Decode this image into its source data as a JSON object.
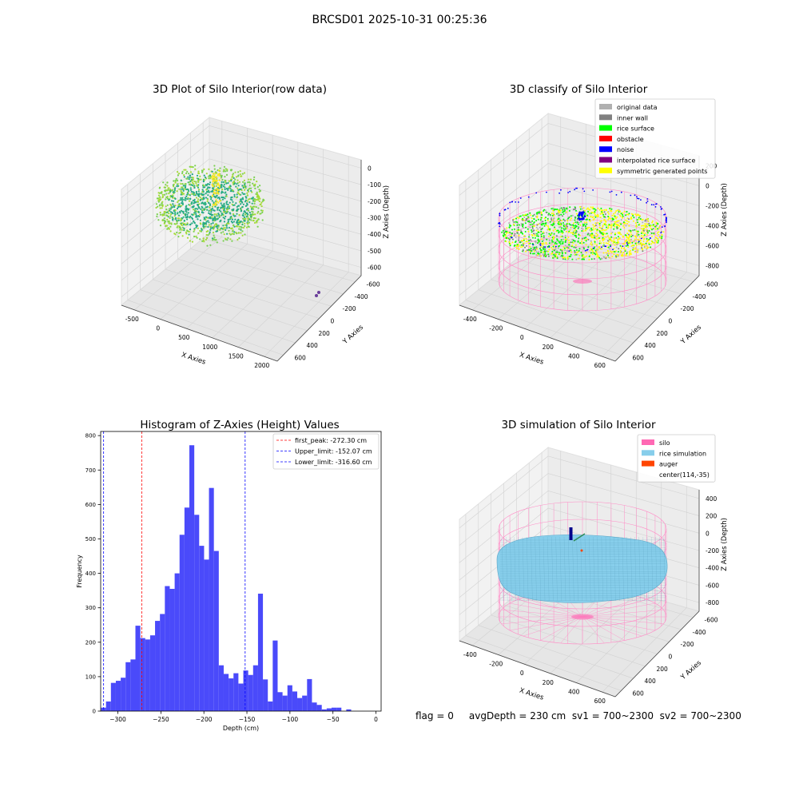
{
  "suptitle": "BRCSD01 2025-10-31 00:25:36",
  "status_line": "flag = 0     avgDepth = 230 cm  sv1 = 700~2300  sv2 = 700~2300",
  "chart_data": [
    {
      "id": "raw",
      "type": "scatter",
      "title": "3D Plot of Silo Interior(row data)",
      "xlabel": "X Axies",
      "ylabel": "Y Axies",
      "zlabel": "Z Axies (Depth)",
      "xticks": [
        "-500",
        "0",
        "500",
        "1000",
        "1500",
        "2000"
      ],
      "yticks": [
        "-600",
        "-400",
        "-200",
        "0",
        "200",
        "400",
        "600"
      ],
      "zticks": [
        "0",
        "-100",
        "-200",
        "-300",
        "-400",
        "-500",
        "-600"
      ],
      "xlim": [
        -600,
        2000
      ],
      "ylim": [
        -700,
        700
      ],
      "zlim": [
        -650,
        30
      ]
    },
    {
      "id": "classify",
      "type": "scatter",
      "title": "3D classify of Silo Interior",
      "xlabel": "X Axies",
      "ylabel": "Y Axies",
      "zlabel": "Z Axies (Depth)",
      "xticks": [
        "-400",
        "-200",
        "0",
        "200",
        "400",
        "600"
      ],
      "yticks": [
        "-600",
        "-400",
        "-200",
        "0",
        "200",
        "400",
        "600"
      ],
      "zticks": [
        "200",
        "0",
        "-200",
        "-400",
        "-600",
        "-800"
      ],
      "legend_position": "top-right",
      "legend": [
        {
          "label": "original data",
          "color": "#b0b0b0"
        },
        {
          "label": "inner wall",
          "color": "#808080"
        },
        {
          "label": "rice surface",
          "color": "#00ff00"
        },
        {
          "label": "obstacle",
          "color": "#ff0000"
        },
        {
          "label": "noise",
          "color": "#0000ff"
        },
        {
          "label": "interpolated rice surface",
          "color": "#800080"
        },
        {
          "label": "symmetric generated points",
          "color": "#ffff00"
        }
      ]
    },
    {
      "id": "histogram",
      "type": "bar",
      "title": "Histogram of Z-Axies (Height) Values",
      "xlabel": "Depth (cm)",
      "ylabel": "Frequency",
      "xlim": [
        -320,
        6
      ],
      "ylim": [
        0,
        812
      ],
      "xticks": [
        -300,
        -250,
        -200,
        -150,
        -100,
        -50,
        0
      ],
      "xtick_labels": [
        "−300",
        "−250",
        "−200",
        "−150",
        "−100",
        "−50",
        "0"
      ],
      "yticks": [
        0,
        100,
        200,
        300,
        400,
        500,
        600,
        700,
        800
      ],
      "bar_color": "#4a4afa",
      "bin_width": 5.7,
      "bin_starts": [
        -319.5,
        -313.8,
        -308.1,
        -302.4,
        -296.7,
        -291.0,
        -285.3,
        -279.6,
        -273.9,
        -268.2,
        -262.5,
        -256.8,
        -251.1,
        -245.4,
        -239.7,
        -234.0,
        -228.3,
        -222.6,
        -216.9,
        -211.2,
        -205.5,
        -199.8,
        -194.1,
        -188.4,
        -182.7,
        -177.0,
        -171.3,
        -165.6,
        -159.9,
        -154.2,
        -148.5,
        -142.8,
        -137.1,
        -131.4,
        -125.7,
        -120.0,
        -114.3,
        -108.6,
        -102.9,
        -97.2,
        -91.5,
        -85.8,
        -80.1,
        -74.4,
        -68.7,
        -63.0,
        -57.3,
        -51.6,
        -45.9,
        -40.2,
        -34.5,
        -28.8,
        -23.1,
        -17.4,
        -11.7,
        -6.0,
        -0.3
      ],
      "values": [
        10,
        28,
        82,
        88,
        97,
        142,
        150,
        248,
        212,
        208,
        220,
        262,
        282,
        363,
        355,
        400,
        512,
        591,
        772,
        570,
        480,
        440,
        648,
        465,
        133,
        108,
        95,
        110,
        80,
        118,
        105,
        133,
        341,
        92,
        28,
        205,
        55,
        45,
        75,
        57,
        38,
        45,
        93,
        25,
        18,
        5,
        8,
        10,
        10,
        0,
        5,
        0,
        0,
        0,
        0,
        0,
        0
      ],
      "lines": [
        {
          "label": "first_peak: -272.30 cm",
          "x": -272.3,
          "color": "#ff0000"
        },
        {
          "label": "Upper_limit: -152.07 cm",
          "x": -152.07,
          "color": "#0000ff"
        },
        {
          "label": "Lower_limit: -316.60 cm",
          "x": -316.6,
          "color": "#0000ff"
        }
      ],
      "legend_position": "top-right"
    },
    {
      "id": "simulation",
      "type": "scatter",
      "title": "3D simulation of Silo Interior",
      "xlabel": "X Axies",
      "ylabel": "Y Axies",
      "zlabel": "Z Axies (Depth)",
      "xticks": [
        "-400",
        "-200",
        "0",
        "200",
        "400",
        "600"
      ],
      "yticks": [
        "-600",
        "-400",
        "-200",
        "0",
        "200",
        "400",
        "600"
      ],
      "zticks": [
        "400",
        "200",
        "0",
        "-200",
        "-400",
        "-600",
        "-800"
      ],
      "legend_position": "top-right",
      "legend": [
        {
          "label": "silo",
          "color": "#ff69b4"
        },
        {
          "label": "rice simulation",
          "color": "#87ceeb"
        },
        {
          "label": "auger",
          "color": "#ff4500"
        },
        {
          "label": "center(114,-35)",
          "color": ""
        }
      ]
    }
  ]
}
